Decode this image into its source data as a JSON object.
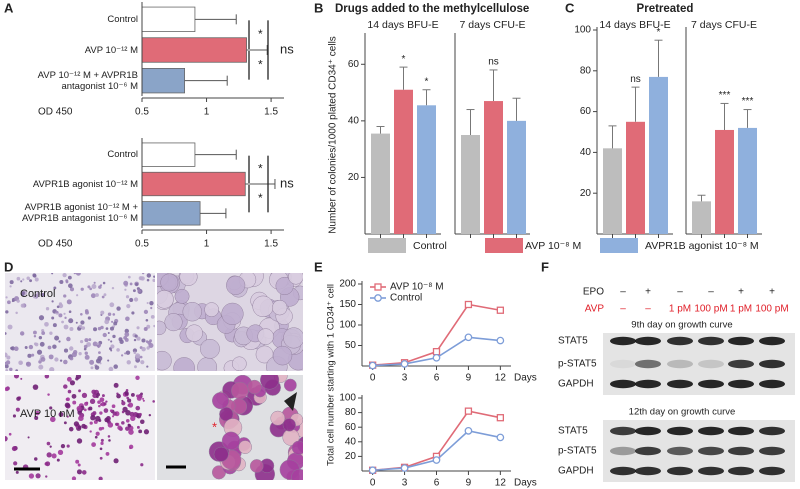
{
  "panels": [
    "A",
    "B",
    "C",
    "D",
    "E",
    "F"
  ],
  "headers": {
    "b_title": "Drugs added to the methylcellulose",
    "c_title": "Pretreated",
    "bc_ylabel": "Number of colonies/1000 plated CD34⁺ cells",
    "e_ylabel": "Total cell number starting with 1 CD34⁺ cell"
  },
  "legend": [
    {
      "name": "Control",
      "color": "#bdbdbd"
    },
    {
      "name": "AVP 10⁻⁸ M",
      "color": "#e06b77"
    },
    {
      "name": "AVPR1B agonist 10⁻⁸ M",
      "color": "#8fb0dd"
    }
  ],
  "chart_data": [
    {
      "type": "hbar",
      "categories": [
        "Control",
        "AVP 10⁻¹² M",
        "AVP 10⁻¹² M + AVPR1B antagonist 10⁻⁶ M"
      ],
      "values": [
        0.91,
        1.31,
        0.83
      ],
      "errors": [
        0.32,
        0.16,
        0.33
      ],
      "colors": [
        "#ffffff",
        "#e06b77",
        "#8aa4c8"
      ],
      "xlim": [
        0.5,
        1.6
      ],
      "xticks": [
        0.5,
        1,
        1.5
      ],
      "xlabel": "OD 450",
      "annotations": [
        "*",
        "*",
        "ns"
      ]
    },
    {
      "type": "hbar",
      "categories": [
        "Control",
        "AVPR1B agonist 10⁻¹² M",
        "AVPR1B agonist 10⁻¹² M + AVPR1B antagonist 10⁻⁶ M"
      ],
      "values": [
        0.91,
        1.3,
        0.95
      ],
      "errors": [
        0.32,
        0.23,
        0.2
      ],
      "colors": [
        "#ffffff",
        "#e06b77",
        "#8aa4c8"
      ],
      "xlim": [
        0.5,
        1.6
      ],
      "xticks": [
        0.5,
        1,
        1.5
      ],
      "xlabel": "OD 450",
      "annotations": [
        "*",
        "*",
        "ns"
      ]
    },
    {
      "type": "bar",
      "title": "14 days BFU-E",
      "categories": [
        null
      ],
      "series": [
        {
          "color": "#bdbdbd",
          "values": [
            35.5
          ],
          "errors": [
            2.5
          ]
        },
        {
          "color": "#e06b77",
          "values": [
            51
          ],
          "errors": [
            8
          ]
        },
        {
          "color": "#8fb0dd",
          "values": [
            45.5
          ],
          "errors": [
            5.5
          ]
        }
      ],
      "ylim": [
        0,
        70
      ],
      "yticks": [
        20,
        40,
        60
      ],
      "annotations": [
        null,
        "*",
        "*"
      ]
    },
    {
      "type": "bar",
      "title": "7 days CFU-E",
      "categories": [
        null
      ],
      "series": [
        {
          "color": "#bdbdbd",
          "values": [
            35
          ],
          "errors": [
            9
          ]
        },
        {
          "color": "#e06b77",
          "values": [
            47
          ],
          "errors": [
            11
          ]
        },
        {
          "color": "#8fb0dd",
          "values": [
            40
          ],
          "errors": [
            8
          ]
        }
      ],
      "ylim": [
        0,
        70
      ],
      "annotations": [
        null,
        "ns",
        null
      ]
    },
    {
      "type": "bar",
      "title": "14 days BFU-E",
      "categories": [
        null
      ],
      "series": [
        {
          "color": "#bdbdbd",
          "values": [
            42
          ],
          "errors": [
            11
          ]
        },
        {
          "color": "#e06b77",
          "values": [
            55
          ],
          "errors": [
            17
          ]
        },
        {
          "color": "#8fb0dd",
          "values": [
            77
          ],
          "errors": [
            18
          ]
        }
      ],
      "ylim": [
        0,
        100
      ],
      "yticks": [
        20,
        40,
        60,
        80,
        100
      ],
      "annotations": [
        null,
        "ns",
        "*"
      ]
    },
    {
      "type": "bar",
      "title": "7 days CFU-E",
      "categories": [
        null
      ],
      "series": [
        {
          "color": "#bdbdbd",
          "values": [
            16
          ],
          "errors": [
            3
          ]
        },
        {
          "color": "#e06b77",
          "values": [
            51
          ],
          "errors": [
            13
          ]
        },
        {
          "color": "#8fb0dd",
          "values": [
            52
          ],
          "errors": [
            9
          ]
        }
      ],
      "ylim": [
        0,
        100
      ],
      "annotations": [
        null,
        "***",
        "***"
      ]
    },
    {
      "type": "line",
      "x": [
        0,
        3,
        6,
        9,
        12
      ],
      "xlim": [
        -1,
        13
      ],
      "xticks": [
        0,
        3,
        6,
        9,
        12
      ],
      "xlabel": "Days",
      "ylim": [
        0,
        200
      ],
      "yticks": [
        50,
        100,
        150,
        200
      ],
      "legend": "upper left",
      "series": [
        {
          "name": "AVP 10⁻⁸ M",
          "color": "#e06b77",
          "marker": "square",
          "values": [
            2,
            8,
            35,
            150,
            136
          ]
        },
        {
          "name": "Control",
          "color": "#7d9dd8",
          "marker": "circle",
          "values": [
            1,
            5,
            20,
            70,
            62
          ]
        }
      ]
    },
    {
      "type": "line",
      "x": [
        0,
        3,
        6,
        9,
        12
      ],
      "xlim": [
        -1,
        13
      ],
      "xticks": [
        0,
        3,
        6,
        9,
        12
      ],
      "xlabel": "Days",
      "ylim": [
        0,
        100
      ],
      "yticks": [
        20,
        40,
        60,
        80,
        100
      ],
      "series": [
        {
          "color": "#e06b77",
          "marker": "square",
          "values": [
            1,
            5,
            20,
            82,
            73
          ]
        },
        {
          "color": "#7d9dd8",
          "marker": "circle",
          "values": [
            1,
            4,
            15,
            55,
            46
          ]
        }
      ]
    }
  ],
  "micrographs": {
    "labels": [
      "Control",
      "AVP 10 nM"
    ],
    "marker": "*"
  },
  "blot": {
    "conditions": [
      {
        "label": "EPO",
        "color": "#222222",
        "values": [
          "–",
          "+",
          "–",
          "–",
          "+",
          "+"
        ]
      },
      {
        "label": "AVP",
        "color": "#e0202a",
        "values": [
          "–",
          "–",
          "1 pM",
          "100 pM",
          "1 pM",
          "100 pM"
        ]
      }
    ],
    "panels": [
      {
        "title": "9th day on growth curve",
        "bands": [
          "STAT5",
          "p-STAT5",
          "GAPDH"
        ]
      },
      {
        "title": "12th day on growth curve",
        "bands": [
          "STAT5",
          "p-STAT5",
          "GAPDH"
        ]
      }
    ]
  }
}
